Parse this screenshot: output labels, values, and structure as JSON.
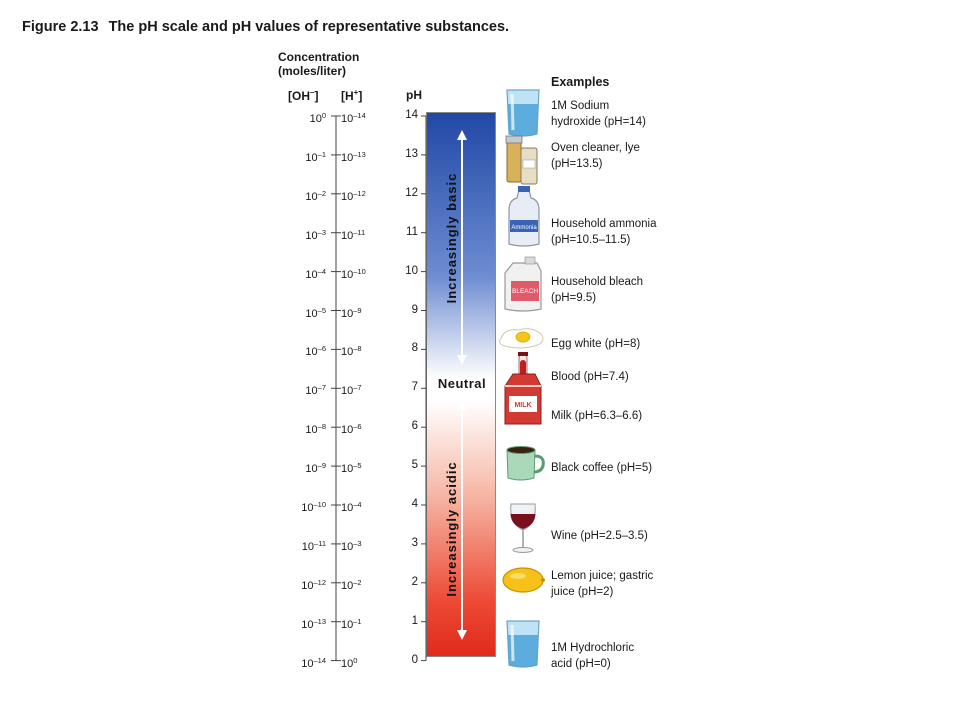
{
  "figure": {
    "number": "Figure 2.13",
    "caption": "The pH scale and pH values of representative substances."
  },
  "concentration_header": {
    "line1": "Concentration",
    "line2": "(moles/liter)"
  },
  "columns": {
    "oh": "[OH",
    "oh_sup": "–",
    "oh_close": "]",
    "h": "[H",
    "h_sup": "+",
    "h_close": "]",
    "ph": "pH"
  },
  "examples_title": "Examples",
  "labels": {
    "increasingly_basic": "Increasingly basic",
    "neutral": "Neutral",
    "increasingly_acidic": "Increasingly acidic"
  },
  "scale": [
    {
      "ph": "14",
      "oh_exp": "0",
      "h_exp": "–14"
    },
    {
      "ph": "13",
      "oh_exp": "–1",
      "h_exp": "–13"
    },
    {
      "ph": "12",
      "oh_exp": "–2",
      "h_exp": "–12"
    },
    {
      "ph": "11",
      "oh_exp": "–3",
      "h_exp": "–11"
    },
    {
      "ph": "10",
      "oh_exp": "–4",
      "h_exp": "–10"
    },
    {
      "ph": "9",
      "oh_exp": "–5",
      "h_exp": "–9"
    },
    {
      "ph": "8",
      "oh_exp": "–6",
      "h_exp": "–8"
    },
    {
      "ph": "7",
      "oh_exp": "–7",
      "h_exp": "–7"
    },
    {
      "ph": "6",
      "oh_exp": "–8",
      "h_exp": "–6"
    },
    {
      "ph": "5",
      "oh_exp": "–9",
      "h_exp": "–5"
    },
    {
      "ph": "4",
      "oh_exp": "–10",
      "h_exp": "–4"
    },
    {
      "ph": "3",
      "oh_exp": "–11",
      "h_exp": "–3"
    },
    {
      "ph": "2",
      "oh_exp": "–12",
      "h_exp": "–2"
    },
    {
      "ph": "1",
      "oh_exp": "–13",
      "h_exp": "–1"
    },
    {
      "ph": "0",
      "oh_exp": "–14",
      "h_exp": "0"
    }
  ],
  "base": "10",
  "examples": [
    {
      "lines": [
        "1M Sodium",
        "hydroxide (pH=14)"
      ],
      "icon": "beaker-icon"
    },
    {
      "lines": [
        "Oven cleaner, lye",
        "(pH=13.5)"
      ],
      "icon": "oven-cleaner-icon"
    },
    {
      "lines": [
        "Household ammonia",
        "(pH=10.5–11.5)"
      ],
      "icon": "ammonia-jug-icon",
      "icon_text": "Ammonia"
    },
    {
      "lines": [
        "Household bleach",
        "(pH=9.5)"
      ],
      "icon": "bleach-jug-icon",
      "icon_text": "BLEACH"
    },
    {
      "lines": [
        "Egg white (pH=8)"
      ],
      "icon": "egg-icon"
    },
    {
      "lines": [
        "Blood (pH=7.4)"
      ],
      "icon": "blood-tube-icon"
    },
    {
      "lines": [
        "Milk (pH=6.3–6.6)"
      ],
      "icon": "milk-carton-icon",
      "icon_text": "MILK"
    },
    {
      "lines": [
        "Black coffee (pH=5)"
      ],
      "icon": "coffee-mug-icon"
    },
    {
      "lines": [
        "Wine (pH=2.5–3.5)"
      ],
      "icon": "wine-glass-icon"
    },
    {
      "lines": [
        "Lemon juice; gastric",
        "juice (pH=2)"
      ],
      "icon": "lemon-icon"
    },
    {
      "lines": [
        "1M Hydrochloric",
        "acid (pH=0)"
      ],
      "icon": "beaker-icon"
    }
  ],
  "colors": {
    "basic": "#2148a6",
    "neutral": "#ffffff",
    "acidic": "#e02a1c",
    "arrow": "#ffffff"
  }
}
